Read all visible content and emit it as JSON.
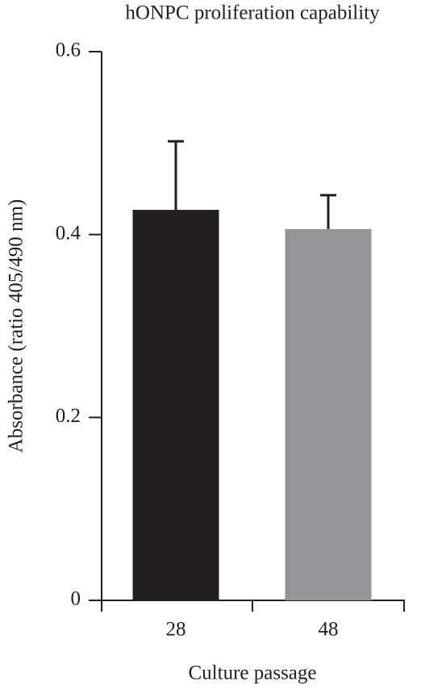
{
  "chart_data": {
    "type": "bar",
    "title": "hONPC proliferation capability",
    "x_label": "Culture passage",
    "y_label": "Absorbance (ratio 405/490 nm)",
    "categories": [
      "28",
      "48"
    ],
    "values": [
      0.427,
      0.406
    ],
    "errors": [
      0.075,
      0.037
    ],
    "colors": [
      "#231f20",
      "#939598"
    ],
    "ylim": [
      0,
      0.6
    ],
    "yticks": [
      0,
      0.2,
      0.4,
      0.6
    ],
    "grid": false
  }
}
